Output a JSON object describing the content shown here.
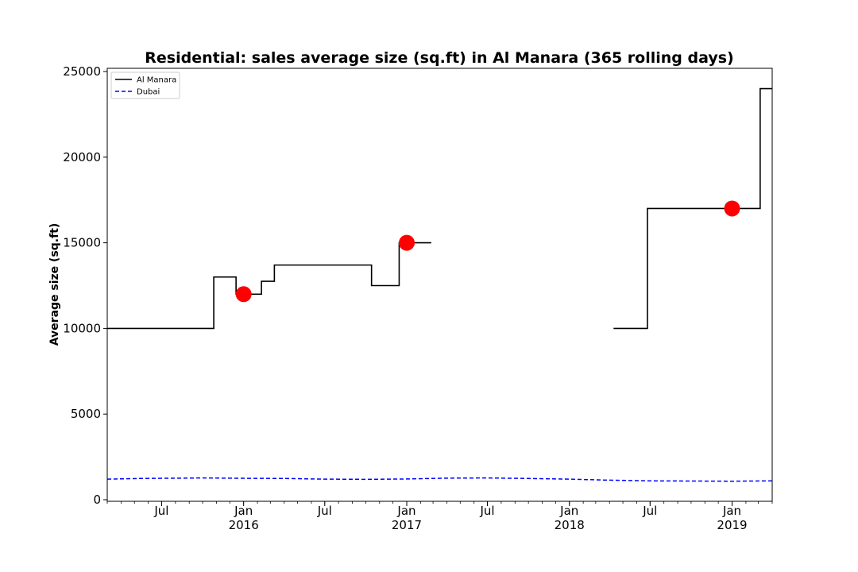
{
  "chart_data": {
    "type": "line",
    "title": "Residential: sales average size (sq.ft) in Al Manara (365 rolling days)",
    "xlabel": "",
    "ylabel": "Average size (sq.ft)",
    "xlim": [
      "2015-03-01",
      "2019-04-01"
    ],
    "ylim": [
      0,
      25000
    ],
    "yticks": [
      0,
      5000,
      10000,
      15000,
      20000,
      25000
    ],
    "xticks": [
      {
        "date": "2015-07-01",
        "label": "Jul",
        "sub": ""
      },
      {
        "date": "2016-01-01",
        "label": "Jan",
        "sub": "2016"
      },
      {
        "date": "2016-07-01",
        "label": "Jul",
        "sub": ""
      },
      {
        "date": "2017-01-01",
        "label": "Jan",
        "sub": "2017"
      },
      {
        "date": "2017-07-01",
        "label": "Jul",
        "sub": ""
      },
      {
        "date": "2018-01-01",
        "label": "Jan",
        "sub": "2018"
      },
      {
        "date": "2018-07-01",
        "label": "Jul",
        "sub": ""
      },
      {
        "date": "2019-01-01",
        "label": "Jan",
        "sub": "2019"
      }
    ],
    "legend_position": "top-left",
    "grid": false,
    "series": [
      {
        "name": "Al Manara",
        "color": "#000000",
        "style": "solid-step",
        "segments": [
          [
            {
              "x": "2015-03-01",
              "y": 10000
            },
            {
              "x": "2015-10-26",
              "y": 13000
            },
            {
              "x": "2015-12-15",
              "y": 12000
            },
            {
              "x": "2016-02-10",
              "y": 12750
            },
            {
              "x": "2016-03-10",
              "y": 13700
            },
            {
              "x": "2016-10-14",
              "y": 12500
            },
            {
              "x": "2016-12-15",
              "y": 15000
            },
            {
              "x": "2017-02-25",
              "y": 15000
            }
          ],
          [
            {
              "x": "2018-04-10",
              "y": 10000
            },
            {
              "x": "2018-06-25",
              "y": 17000
            },
            {
              "x": "2019-03-05",
              "y": 24000
            },
            {
              "x": "2019-04-01",
              "y": 24000
            }
          ]
        ]
      },
      {
        "name": "Dubai",
        "color": "#0000ff",
        "style": "dashed",
        "points": [
          {
            "x": "2015-03-01",
            "y": 1200
          },
          {
            "x": "2015-05-15",
            "y": 1240
          },
          {
            "x": "2015-10-01",
            "y": 1270
          },
          {
            "x": "2016-01-01",
            "y": 1250
          },
          {
            "x": "2016-04-01",
            "y": 1240
          },
          {
            "x": "2016-07-01",
            "y": 1200
          },
          {
            "x": "2016-10-01",
            "y": 1190
          },
          {
            "x": "2017-01-01",
            "y": 1210
          },
          {
            "x": "2017-04-01",
            "y": 1260
          },
          {
            "x": "2017-07-01",
            "y": 1270
          },
          {
            "x": "2017-10-01",
            "y": 1240
          },
          {
            "x": "2018-01-01",
            "y": 1200
          },
          {
            "x": "2018-04-01",
            "y": 1140
          },
          {
            "x": "2018-07-01",
            "y": 1100
          },
          {
            "x": "2018-10-01",
            "y": 1090
          },
          {
            "x": "2019-01-01",
            "y": 1080
          },
          {
            "x": "2019-04-01",
            "y": 1100
          }
        ]
      }
    ],
    "markers": [
      {
        "x": "2016-01-01",
        "y": 12000,
        "color": "#ff0000"
      },
      {
        "x": "2017-01-01",
        "y": 15000,
        "color": "#ff0000"
      },
      {
        "x": "2019-01-01",
        "y": 17000,
        "color": "#ff0000"
      }
    ]
  }
}
